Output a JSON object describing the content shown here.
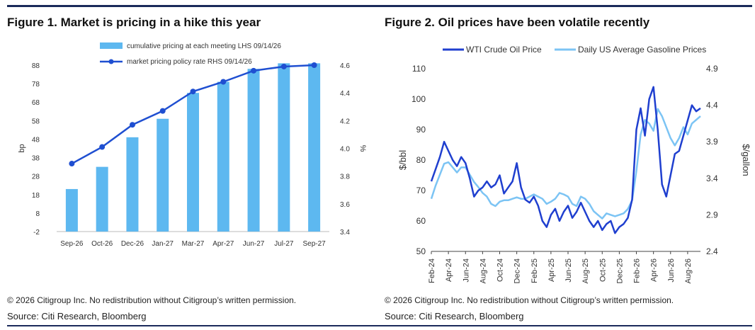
{
  "figure1": {
    "title": "Figure 1. Market is pricing in a hike this year",
    "copyright": "© 2026 Citigroup Inc. No redistribution without Citigroup’s written permission.",
    "source": "Source: Citi Research, Bloomberg"
  },
  "figure2": {
    "title": "Figure 2. Oil prices have been volatile recently",
    "copyright": "© 2026 Citigroup Inc. No redistribution without Citigroup’s written permission.",
    "source": "Source: Citi Research, Bloomberg"
  },
  "chart_data": [
    {
      "type": "bar",
      "title": "Figure 1. Market is pricing in a hike this year",
      "categories": [
        "Sep-26",
        "Oct-26",
        "Dec-26",
        "Jan-27",
        "Mar-27",
        "Apr-27",
        "Jun-27",
        "Jul-27",
        "Sep-27"
      ],
      "series": [
        {
          "name": "cumulative pricing at each meeting LHS 09/14/26",
          "kind": "bar",
          "axis": "left",
          "color": "#5db8f0",
          "values": [
            21,
            33,
            49,
            59,
            73,
            79,
            86,
            89,
            89
          ]
        },
        {
          "name": "market pricing policy rate RHS 09/14/26",
          "kind": "line",
          "axis": "right",
          "color": "#1f4fd1",
          "values": [
            3.89,
            4.01,
            4.17,
            4.27,
            4.41,
            4.48,
            4.56,
            4.59,
            4.6
          ]
        }
      ],
      "ylabel_left": "bp",
      "ylabel_right": "%",
      "yticks_left": [
        "-2",
        "8",
        "18",
        "28",
        "38",
        "48",
        "58",
        "68",
        "78",
        "88"
      ],
      "yticks_right": [
        "3.4",
        "3.6",
        "3.8",
        "4.0",
        "4.2",
        "4.4",
        "4.6"
      ],
      "ylim_left": [
        -2,
        88
      ],
      "ylim_right": [
        3.4,
        4.6
      ],
      "grid": false,
      "legend": "top-center"
    },
    {
      "type": "line",
      "title": "Figure 2. Oil prices have been volatile recently",
      "xlabels": [
        "Feb-24",
        "Apr-24",
        "Jun-24",
        "Aug-24",
        "Oct-24",
        "Dec-24",
        "Feb-25",
        "Apr-25",
        "Jun-25",
        "Aug-25",
        "Oct-25",
        "Dec-25",
        "Feb-26",
        "Apr-26",
        "Jun-26",
        "Aug-26"
      ],
      "series": [
        {
          "name": "WTI Crude Oil Price",
          "axis": "left",
          "color": "#1f3fcf",
          "x": [
            0,
            0.5,
            1,
            1.5,
            2,
            2.5,
            3,
            3.5,
            4,
            4.5,
            5,
            5.5,
            6,
            6.5,
            7,
            7.5,
            8,
            8.5,
            9,
            9.5,
            10,
            10.5,
            11,
            11.5,
            12,
            12.5,
            13,
            13.5,
            14,
            14.5,
            15,
            15.5,
            16,
            16.5,
            17,
            17.5,
            18,
            18.5,
            19,
            19.5,
            20,
            20.5,
            21,
            21.5,
            22,
            22.5,
            23,
            23.5,
            24,
            24.5,
            25,
            25.5,
            26,
            26.5,
            27,
            27.5,
            28,
            28.5,
            29,
            29.5,
            30,
            30.5,
            31,
            31.5
          ],
          "values": [
            73,
            77,
            81,
            86,
            83,
            80,
            78,
            81,
            79,
            74,
            68,
            70,
            71,
            73,
            71,
            72,
            75,
            69,
            71,
            73,
            79,
            71,
            67,
            66,
            68,
            65,
            60,
            58,
            62,
            64,
            60,
            63,
            65,
            61,
            63,
            66,
            63,
            60,
            58,
            60,
            57,
            59,
            60,
            56,
            58,
            59,
            61,
            67,
            90,
            97,
            88,
            100,
            104,
            90,
            72,
            68,
            75,
            82,
            83,
            88,
            93,
            98,
            96,
            97
          ]
        },
        {
          "name": "Daily US Average Gasoline Prices",
          "axis": "right",
          "color": "#7cc4f4",
          "x": [
            0,
            0.5,
            1,
            1.5,
            2,
            2.5,
            3,
            3.5,
            4,
            4.5,
            5,
            5.5,
            6,
            6.5,
            7,
            7.5,
            8,
            8.5,
            9,
            9.5,
            10,
            10.5,
            11,
            11.5,
            12,
            12.5,
            13,
            13.5,
            14,
            14.5,
            15,
            15.5,
            16,
            16.5,
            17,
            17.5,
            18,
            18.5,
            19,
            19.5,
            20,
            20.5,
            21,
            21.5,
            22,
            22.5,
            23,
            23.5,
            24,
            24.5,
            25,
            25.5,
            26,
            26.5,
            27,
            27.5,
            28,
            28.5,
            29,
            29.5,
            30,
            30.5,
            31,
            31.5
          ],
          "values": [
            3.12,
            3.3,
            3.45,
            3.6,
            3.62,
            3.55,
            3.48,
            3.55,
            3.55,
            3.45,
            3.35,
            3.28,
            3.2,
            3.15,
            3.05,
            3.02,
            3.08,
            3.1,
            3.1,
            3.12,
            3.14,
            3.12,
            3.12,
            3.15,
            3.18,
            3.15,
            3.12,
            3.05,
            3.08,
            3.12,
            3.2,
            3.18,
            3.15,
            3.05,
            3.02,
            3.15,
            3.12,
            3.05,
            2.95,
            2.9,
            2.85,
            2.92,
            2.9,
            2.88,
            2.9,
            2.92,
            2.98,
            3.1,
            3.5,
            4.0,
            4.2,
            4.15,
            4.05,
            4.35,
            4.25,
            4.1,
            3.95,
            3.85,
            3.95,
            4.1,
            4.0,
            4.15,
            4.2,
            4.25
          ]
        }
      ],
      "ylabel_left": "$/bbl",
      "ylabel_right": "$/gallon",
      "yticks_left": [
        "50",
        "60",
        "70",
        "80",
        "90",
        "100",
        "110"
      ],
      "yticks_right": [
        "2.4",
        "2.9",
        "3.4",
        "3.9",
        "4.4",
        "4.9"
      ],
      "ylim_left": [
        50,
        110
      ],
      "ylim_right": [
        2.4,
        4.9
      ],
      "grid": false,
      "legend": "top-center"
    }
  ]
}
